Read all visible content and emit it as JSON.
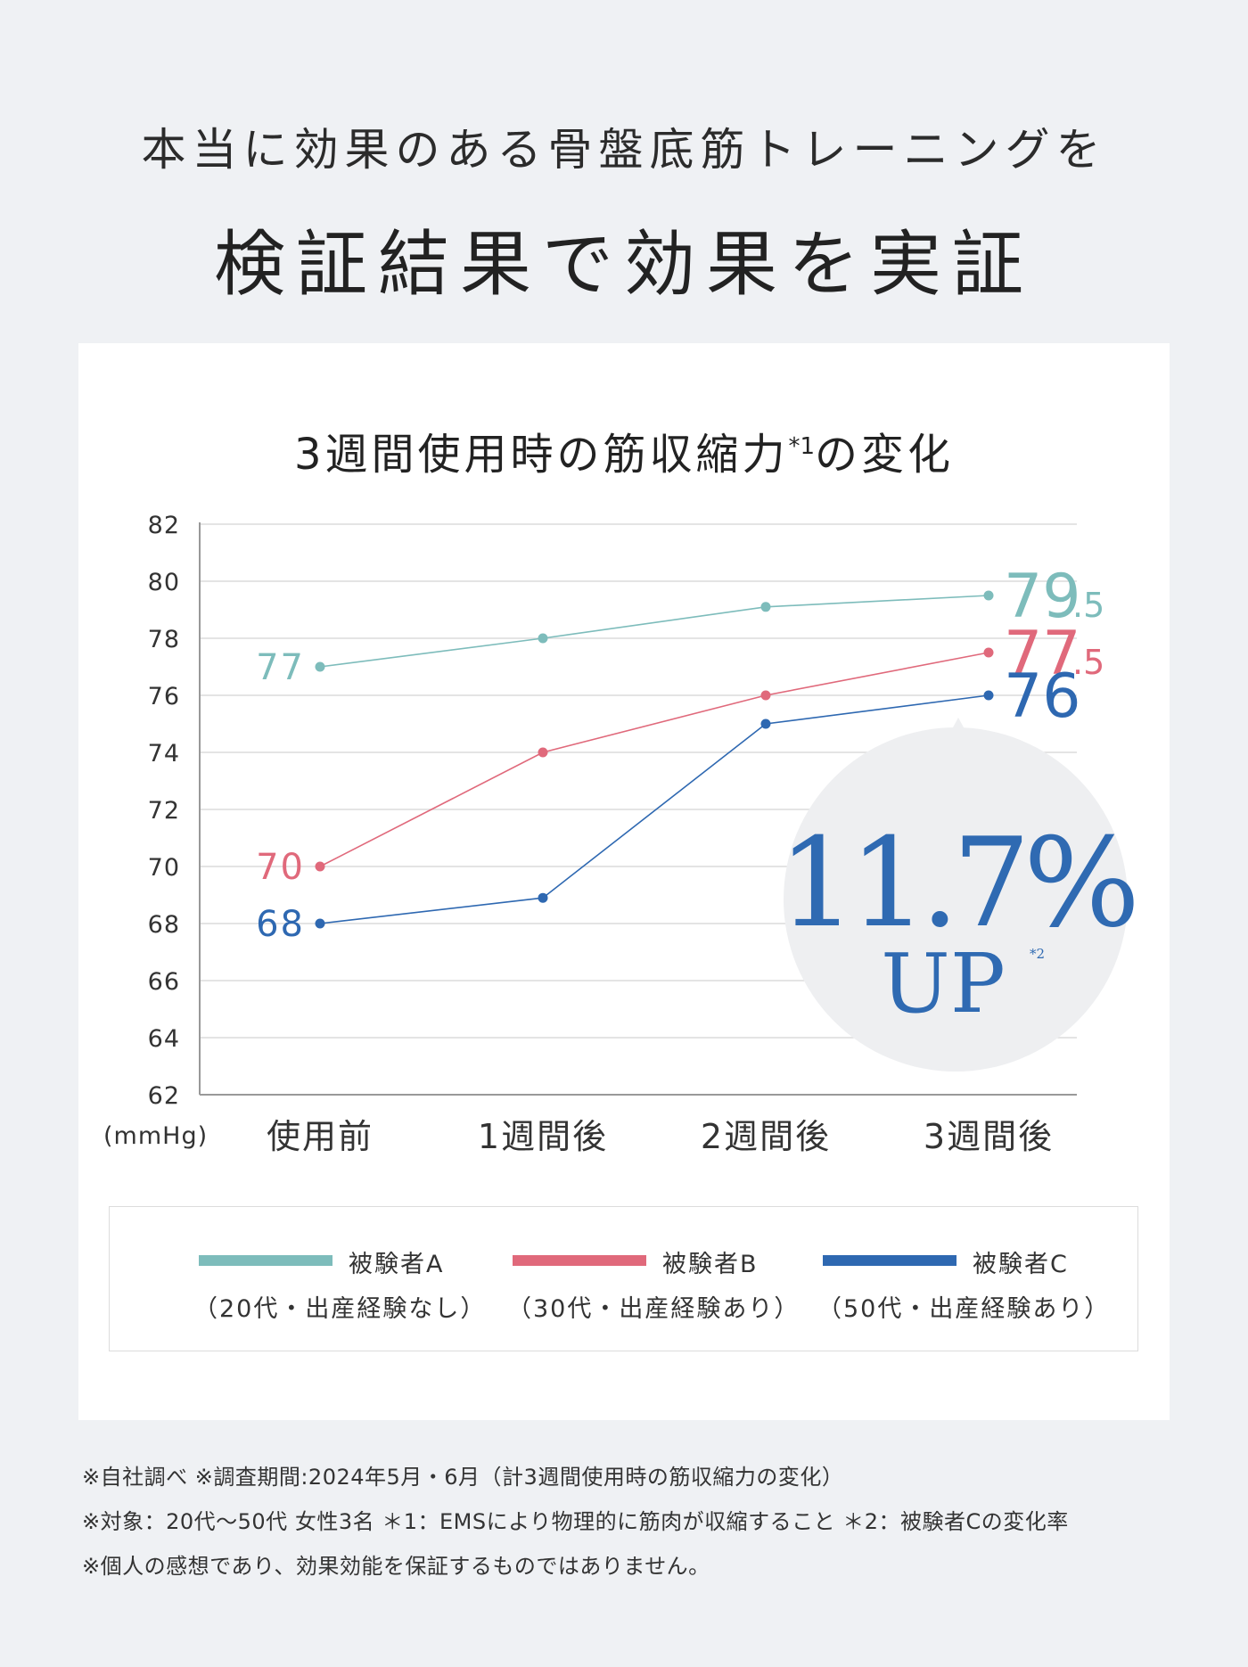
{
  "header": {
    "line1": "本当に効果のある骨盤底筋トレーニングを",
    "line2": "検証結果で効果を実証"
  },
  "chart_data": {
    "type": "line",
    "title": "3週間使用時の筋収縮力",
    "title_sup": "*1",
    "title_suffix": "の変化",
    "categories": [
      "使用前",
      "1週間後",
      "2週間後",
      "3週間後"
    ],
    "ylabel": "(mmHg)",
    "ylim": [
      62,
      82
    ],
    "yticks": [
      62,
      64,
      66,
      68,
      70,
      72,
      74,
      76,
      78,
      80,
      82
    ],
    "grid": true,
    "series": [
      {
        "name": "被験者A",
        "values": [
          77,
          78,
          79.1,
          79.5
        ],
        "color": "#7dbcbb",
        "start_label": "77",
        "end_label_main": "79",
        "end_label_dec": ".5"
      },
      {
        "name": "被験者B",
        "values": [
          70,
          74,
          76,
          77.5
        ],
        "color": "#e0697b",
        "start_label": "70",
        "end_label_main": "77",
        "end_label_dec": ".5"
      },
      {
        "name": "被験者C",
        "values": [
          68,
          68.9,
          75,
          76
        ],
        "color": "#2e68b1",
        "start_label": "68",
        "end_label_main": "76",
        "end_label_dec": ""
      }
    ],
    "callout": {
      "value": "11.7%",
      "label": "UP",
      "note": "*2"
    }
  },
  "legend": [
    {
      "name": "被験者A",
      "sub": "（20代・出産経験なし）",
      "color": "#7dbcbb"
    },
    {
      "name": "被験者B",
      "sub": "（30代・出産経験あり）",
      "color": "#e0697b"
    },
    {
      "name": "被験者C",
      "sub": "（50代・出産経験あり）",
      "color": "#2e68b1"
    }
  ],
  "notes": [
    "※自社調べ ※調査期間:2024年5月・6月（計3週間使用時の筋収縮力の変化）",
    "※対象：20代〜50代 女性3名 ＊1：EMSにより物理的に筋肉が収縮すること ＊2：被験者Cの変化率",
    "※個人の感想であり、効果効能を保証するものではありません。"
  ]
}
